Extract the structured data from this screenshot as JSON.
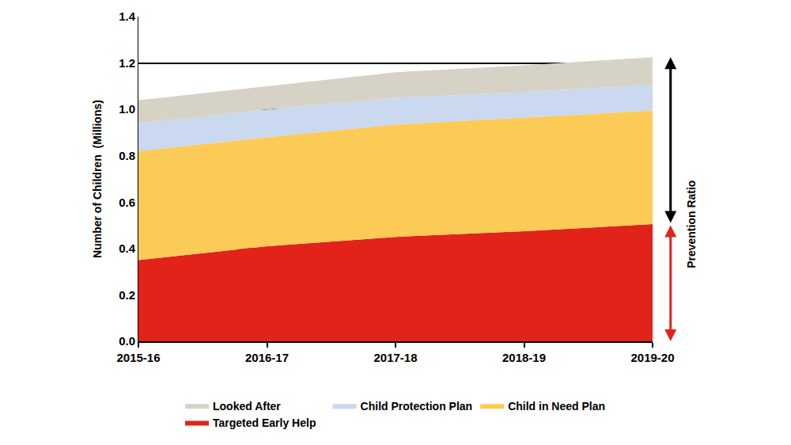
{
  "chart_data": {
    "type": "area",
    "stacked": true,
    "y_label": "Number of Children  (Millions)",
    "categories": [
      "2015-16",
      "2016-17",
      "2017-18",
      "2018-19",
      "2019-20"
    ],
    "series": [
      {
        "name": "Targeted Early Help",
        "color": "#e2231a",
        "values": [
          0.35,
          0.41,
          0.45,
          0.475,
          0.505
        ]
      },
      {
        "name": "Child in Need Plan",
        "color": "#fccb57",
        "values": [
          0.47,
          0.47,
          0.485,
          0.49,
          0.49
        ]
      },
      {
        "name": "Child Protection Plan",
        "color": "#cad8f0",
        "values": [
          0.12,
          0.12,
          0.115,
          0.11,
          0.11
        ]
      },
      {
        "name": "Looked After",
        "color": "#d6d3c6",
        "values": [
          0.1,
          0.1,
          0.11,
          0.115,
          0.12
        ]
      }
    ],
    "ylim": [
      0,
      1.4
    ],
    "yticks": [
      {
        "value": 0,
        "label": "0.0"
      },
      0.2,
      0.4,
      0.6,
      0.8,
      {
        "value": 1,
        "label": "1.0"
      },
      1.2,
      1.4
    ],
    "grid": true,
    "legend": "bottom",
    "annotations": [
      {
        "text": "Prevention Ratio"
      }
    ]
  }
}
